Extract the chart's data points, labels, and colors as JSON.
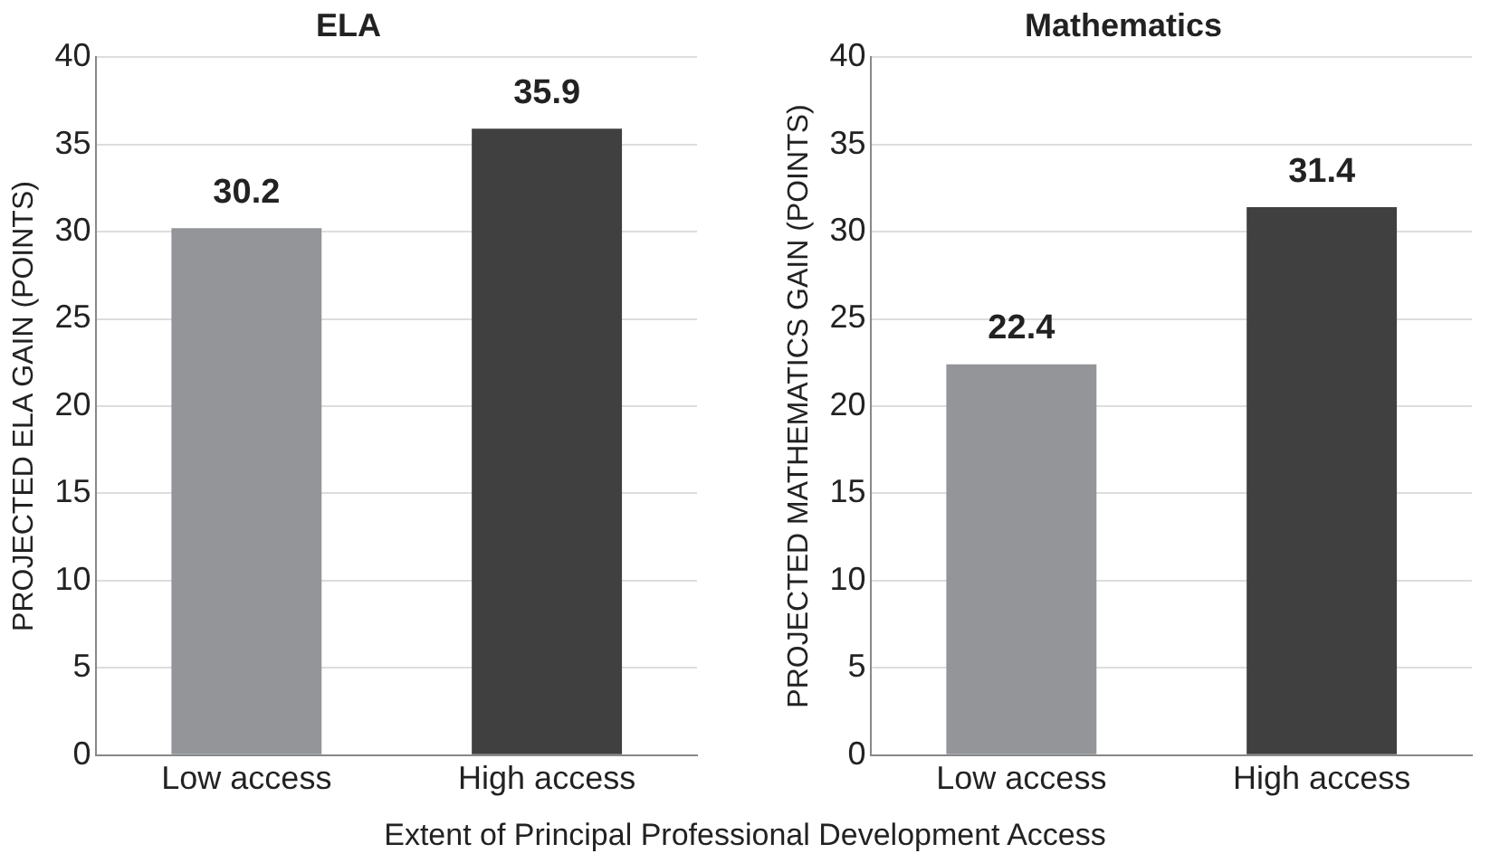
{
  "chart_data": [
    {
      "type": "bar",
      "title": "ELA",
      "ylabel": "PROJECTED ELA GAIN (POINTS)",
      "categories": [
        "Low access",
        "High access"
      ],
      "values": [
        30.2,
        35.9
      ],
      "colors": [
        "#939598",
        "#404040"
      ],
      "ylim": [
        0,
        40
      ],
      "yticks": [
        0,
        5,
        10,
        15,
        20,
        25,
        30,
        35,
        40
      ],
      "grid": "y",
      "data_labels": true,
      "legend": false,
      "annotations": [
        "Extent of Principal Professional Development Access"
      ]
    },
    {
      "type": "bar",
      "title": "Mathematics",
      "ylabel": "PROJECTED MATHEMATICS GAIN (POINTS)",
      "categories": [
        "Low access",
        "High access"
      ],
      "values": [
        22.4,
        31.4
      ],
      "colors": [
        "#939598",
        "#404040"
      ],
      "ylim": [
        0,
        40
      ],
      "yticks": [
        0,
        5,
        10,
        15,
        20,
        25,
        30,
        35,
        40
      ],
      "grid": "y",
      "data_labels": true,
      "legend": false
    }
  ]
}
